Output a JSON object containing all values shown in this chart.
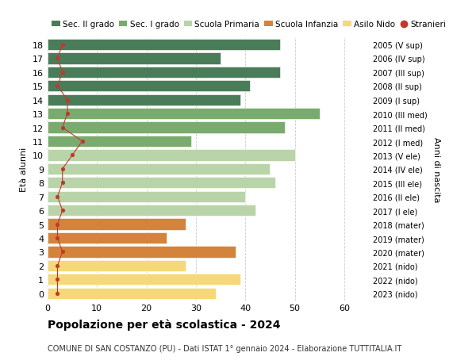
{
  "ages": [
    18,
    17,
    16,
    15,
    14,
    13,
    12,
    11,
    10,
    9,
    8,
    7,
    6,
    5,
    4,
    3,
    2,
    1,
    0
  ],
  "bar_values": [
    47,
    35,
    47,
    41,
    39,
    55,
    48,
    29,
    50,
    45,
    46,
    40,
    42,
    28,
    24,
    38,
    28,
    39,
    34
  ],
  "stranieri_values": [
    3,
    2,
    3,
    2,
    4,
    4,
    3,
    7,
    5,
    3,
    3,
    2,
    3,
    2,
    2,
    3,
    2,
    2,
    2
  ],
  "bar_colors": [
    "#4a7c59",
    "#4a7c59",
    "#4a7c59",
    "#4a7c59",
    "#4a7c59",
    "#7aab6e",
    "#7aab6e",
    "#7aab6e",
    "#b8d4a8",
    "#b8d4a8",
    "#b8d4a8",
    "#b8d4a8",
    "#b8d4a8",
    "#d4843a",
    "#d4843a",
    "#d4843a",
    "#f5d87a",
    "#f5d87a",
    "#f5d87a"
  ],
  "right_labels": [
    "2005 (V sup)",
    "2006 (IV sup)",
    "2007 (III sup)",
    "2008 (II sup)",
    "2009 (I sup)",
    "2010 (III med)",
    "2011 (II med)",
    "2012 (I med)",
    "2013 (V ele)",
    "2014 (IV ele)",
    "2015 (III ele)",
    "2016 (II ele)",
    "2017 (I ele)",
    "2018 (mater)",
    "2019 (mater)",
    "2020 (mater)",
    "2021 (nido)",
    "2022 (nido)",
    "2023 (nido)"
  ],
  "legend_labels": [
    "Sec. II grado",
    "Sec. I grado",
    "Scuola Primaria",
    "Scuola Infanzia",
    "Asilo Nido",
    "Stranieri"
  ],
  "legend_colors": [
    "#4a7c59",
    "#7aab6e",
    "#b8d4a8",
    "#d4843a",
    "#f5d87a",
    "#c0392b"
  ],
  "ylabel": "Età alunni",
  "ylabel_right": "Anni di nascita",
  "title": "Popolazione per età scolastica - 2024",
  "subtitle": "COMUNE DI SAN COSTANZO (PU) - Dati ISTAT 1° gennaio 2024 - Elaborazione TUTTITALIA.IT",
  "xlim": [
    0,
    65
  ],
  "xticks": [
    0,
    10,
    20,
    30,
    40,
    50,
    60
  ],
  "stranieri_color": "#c0392b",
  "grid_color": "#cccccc",
  "bg_color": "#ffffff"
}
